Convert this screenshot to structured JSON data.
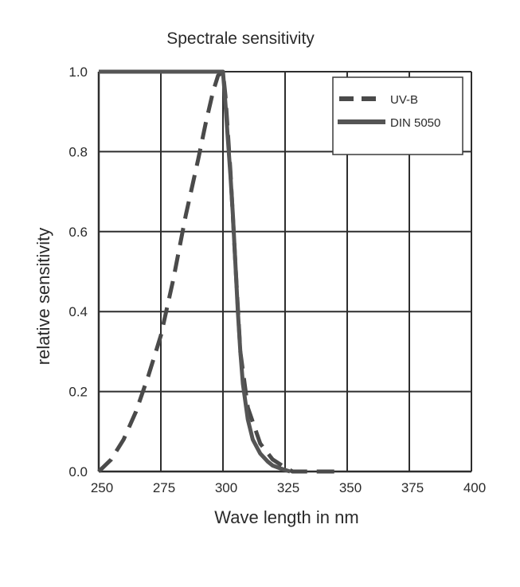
{
  "chart_data": {
    "type": "line",
    "title": "Spectrale sensitivity",
    "xlabel": "Wave length in nm",
    "ylabel": "relative sensitivity",
    "xlim": [
      250,
      400
    ],
    "ylim": [
      0,
      1
    ],
    "x_ticks": [
      250,
      275,
      300,
      325,
      350,
      375,
      400
    ],
    "x_tick_labels": [
      "250",
      "275",
      "300",
      "325",
      "350",
      "375",
      "400"
    ],
    "y_ticks": [
      0,
      0.2,
      0.4,
      0.6,
      0.8,
      1.0
    ],
    "y_tick_labels": [
      "0.0",
      "0.2",
      "0.4",
      "0.6",
      "0.8",
      "1.0"
    ],
    "grid": true,
    "legend_position": "top-right",
    "series": [
      {
        "name": "UV-B",
        "style": "dashed",
        "color": "#4a4a4a",
        "x": [
          250,
          255,
          260,
          265,
          270,
          275,
          280,
          285,
          290,
          293,
          296,
          298,
          300,
          301,
          303,
          305,
          307,
          310,
          315,
          320,
          325,
          328,
          330,
          335,
          340,
          345
        ],
        "y": [
          0.0,
          0.03,
          0.08,
          0.15,
          0.24,
          0.34,
          0.48,
          0.64,
          0.78,
          0.87,
          0.95,
          0.99,
          1.0,
          0.94,
          0.75,
          0.52,
          0.3,
          0.16,
          0.07,
          0.03,
          0.01,
          0.0,
          0.0,
          0.0,
          0.0,
          0.0
        ]
      },
      {
        "name": "DIN 5050",
        "style": "solid",
        "color": "#555555",
        "x": [
          250,
          260,
          270,
          280,
          290,
          298,
          300,
          301,
          302,
          303,
          304,
          305,
          306,
          307,
          308,
          310,
          312,
          315,
          318,
          320,
          323,
          325,
          327
        ],
        "y": [
          1.0,
          1.0,
          1.0,
          1.0,
          1.0,
          1.0,
          1.0,
          0.92,
          0.83,
          0.74,
          0.64,
          0.52,
          0.4,
          0.3,
          0.22,
          0.13,
          0.08,
          0.045,
          0.025,
          0.015,
          0.008,
          0.004,
          0.0
        ]
      }
    ]
  }
}
